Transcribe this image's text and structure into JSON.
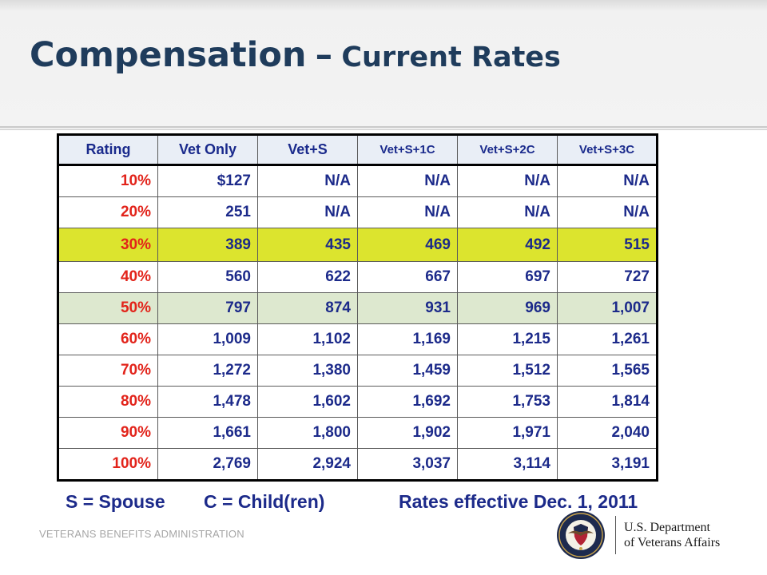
{
  "title": {
    "main": "Compensation",
    "dash": "–",
    "sub": "Current Rates"
  },
  "table": {
    "headers": [
      "Rating",
      "Vet Only",
      "Vet+S",
      "Vet+S+1C",
      "Vet+S+2C",
      "Vet+S+3C"
    ],
    "rows": [
      {
        "rating": "10%",
        "values": [
          "$127",
          "N/A",
          "N/A",
          "N/A",
          "N/A"
        ]
      },
      {
        "rating": "20%",
        "values": [
          "251",
          "N/A",
          "N/A",
          "N/A",
          "N/A"
        ]
      },
      {
        "rating": "30%",
        "values": [
          "389",
          "435",
          "469",
          "492",
          "515"
        ]
      },
      {
        "rating": "40%",
        "values": [
          "560",
          "622",
          "667",
          "697",
          "727"
        ]
      },
      {
        "rating": "50%",
        "values": [
          "797",
          "874",
          "931",
          "969",
          "1,007"
        ]
      },
      {
        "rating": "60%",
        "values": [
          "1,009",
          "1,102",
          "1,169",
          "1,215",
          "1,261"
        ]
      },
      {
        "rating": "70%",
        "values": [
          "1,272",
          "1,380",
          "1,459",
          "1,512",
          "1,565"
        ]
      },
      {
        "rating": "80%",
        "values": [
          "1,478",
          "1,602",
          "1,692",
          "1,753",
          "1,814"
        ]
      },
      {
        "rating": "90%",
        "values": [
          "1,661",
          "1,800",
          "1,902",
          "1,971",
          "2,040"
        ]
      },
      {
        "rating": "100%",
        "values": [
          "2,769",
          "2,924",
          "3,037",
          "3,114",
          "3,191"
        ]
      }
    ]
  },
  "legend": {
    "spouse": "S = Spouse",
    "child": "C = Child(ren)",
    "effective": "Rates effective Dec. 1, 2011"
  },
  "footer": {
    "org": "VETERANS BENEFITS ADMINISTRATION"
  },
  "logo": {
    "line1": "U.S. Department",
    "line2": "of Veterans Affairs",
    "seal_icon": "va-seal-icon"
  },
  "colors": {
    "title": "#1f3c5c",
    "table_text": "#1c2a8a",
    "rating_text": "#e2231a",
    "highlight_30": "#dce42e",
    "highlight_50": "#dde8cf",
    "header_bg": "#e9eef6"
  }
}
